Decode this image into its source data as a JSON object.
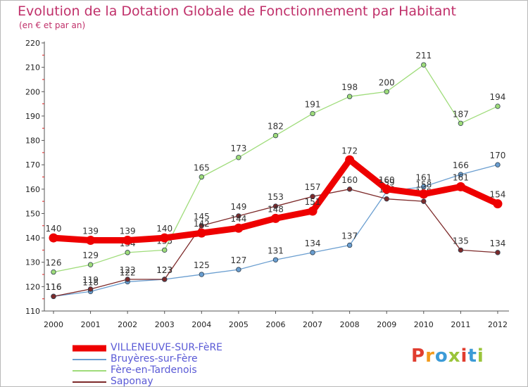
{
  "header": {
    "title": "Evolution de la Dotation Globale de Fonctionnement par Habitant",
    "subtitle": "(en € et par an)"
  },
  "brand": {
    "text": "Proxiti",
    "colors": [
      "#e03d2f",
      "#f29a1b",
      "#3c9bd7",
      "#9ac43a",
      "#e03d2f",
      "#3c9bd7",
      "#9ac43a"
    ]
  },
  "chart_data": {
    "type": "line",
    "title": "Evolution de la Dotation Globale de Fonctionnement par Habitant",
    "subtitle": "(en € et par an)",
    "xlabel": "",
    "ylabel": "",
    "x": [
      "2000",
      "2001",
      "2002",
      "2003",
      "2004",
      "2005",
      "2006",
      "2007",
      "2008",
      "2009",
      "2010",
      "2011",
      "2012"
    ],
    "ylim": [
      110,
      220
    ],
    "yticks": [
      110,
      120,
      130,
      140,
      150,
      160,
      170,
      180,
      190,
      200,
      210,
      220
    ],
    "grid": false,
    "legend_position": "bottom-left",
    "series": [
      {
        "name": "VILLENEUVE-SUR-FèRE",
        "color": "#ee0000",
        "values": [
          140,
          139,
          139,
          140,
          142,
          144,
          148,
          151,
          172,
          160,
          158,
          161,
          154
        ]
      },
      {
        "name": "Bruyères-sur-Fère",
        "color": "#6a9ed0",
        "values": [
          116,
          118,
          122,
          123,
          125,
          127,
          131,
          134,
          137,
          159,
          161,
          166,
          170
        ]
      },
      {
        "name": "Fère-en-Tardenois",
        "color": "#9fdc7a",
        "values": [
          126,
          129,
          134,
          135,
          165,
          173,
          182,
          191,
          198,
          200,
          211,
          187,
          194
        ]
      },
      {
        "name": "Saponay",
        "color": "#7d2a2a",
        "values": [
          116,
          119,
          123,
          123,
          145,
          149,
          153,
          157,
          160,
          156,
          155,
          135,
          134
        ]
      }
    ]
  }
}
